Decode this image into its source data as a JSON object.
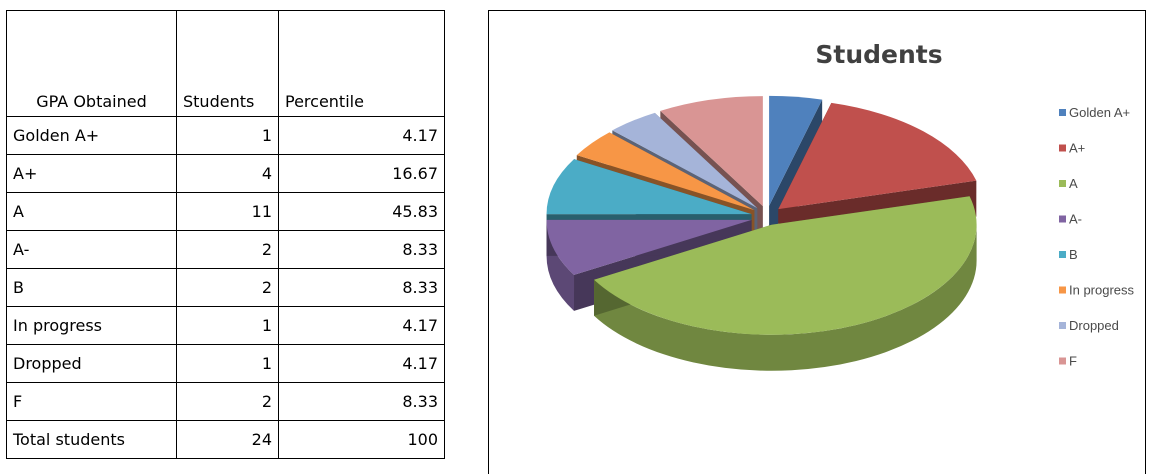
{
  "table": {
    "headers": [
      "GPA Obtained",
      "Students",
      "Percentile"
    ],
    "rows": [
      [
        "Golden A+",
        "1",
        "4.17"
      ],
      [
        "A+",
        "4",
        "16.67"
      ],
      [
        "A",
        "11",
        "45.83"
      ],
      [
        "A-",
        "2",
        "8.33"
      ],
      [
        "B",
        "2",
        "8.33"
      ],
      [
        "In progress",
        "1",
        "4.17"
      ],
      [
        "Dropped",
        "1",
        "4.17"
      ],
      [
        "F",
        "2",
        "8.33"
      ],
      [
        "Total students",
        "24",
        "100"
      ]
    ]
  },
  "chart_data": {
    "type": "pie",
    "style": "3d-exploded",
    "title": "Students",
    "categories": [
      "Golden A+",
      "A+",
      "A",
      "A-",
      "B",
      "In progress",
      "Dropped",
      "F"
    ],
    "values": [
      1,
      4,
      11,
      2,
      2,
      1,
      1,
      2
    ],
    "colors": [
      "#4F81BD",
      "#C0504D",
      "#9BBB59",
      "#8064A2",
      "#4BACC6",
      "#F79646",
      "#A5B4D9",
      "#D99594"
    ],
    "legend_position": "right"
  }
}
